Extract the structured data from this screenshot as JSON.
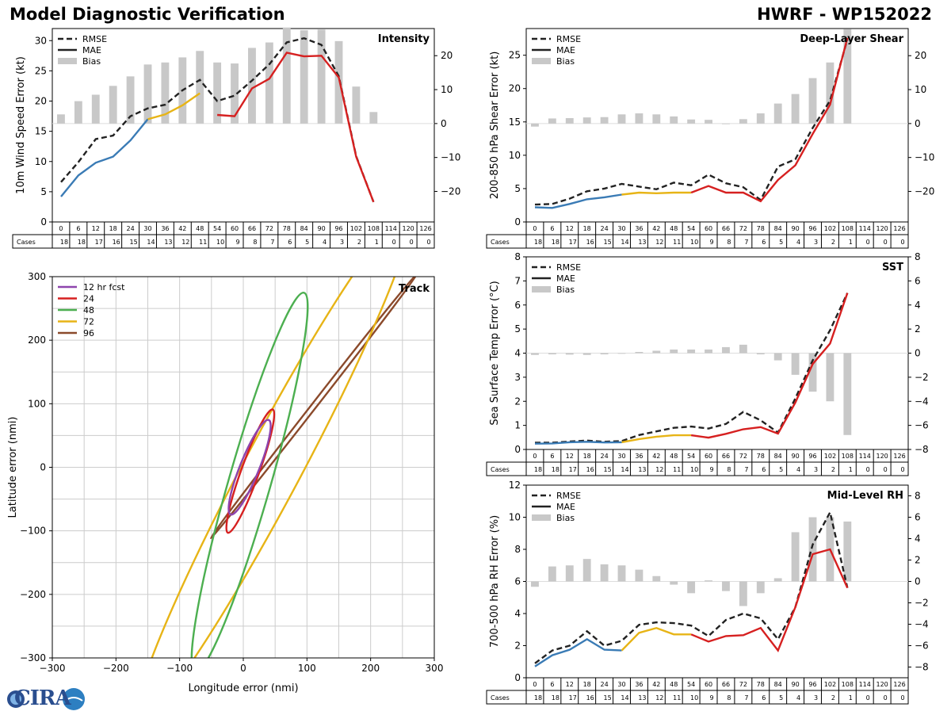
{
  "header": {
    "title": "Model Diagnostic Verification",
    "storm": "HWRF - WP152022"
  },
  "logo": {
    "text": "CIRA"
  },
  "colors": {
    "blue": "#3a7bb5",
    "yellow": "#e7b416",
    "red": "#d62020",
    "rmse": "#222222",
    "bias": "#c8c8c8",
    "purple": "#8e44ad",
    "green": "#4caf50",
    "brown": "#8b4a2b",
    "grid": "#cccccc"
  },
  "table": {
    "cases_label": "Cases",
    "leads": [
      "0",
      "6",
      "12",
      "18",
      "24",
      "30",
      "36",
      "42",
      "48",
      "54",
      "60",
      "66",
      "72",
      "78",
      "84",
      "90",
      "96",
      "102",
      "108",
      "114",
      "120",
      "126"
    ],
    "cases": [
      "18",
      "18",
      "17",
      "16",
      "15",
      "14",
      "13",
      "12",
      "11",
      "10",
      "9",
      "8",
      "7",
      "6",
      "5",
      "4",
      "3",
      "2",
      "1",
      "0",
      "0",
      "0"
    ]
  },
  "legend_labels": {
    "rmse": "RMSE",
    "mae": "MAE",
    "bias": "Bias"
  },
  "chart_data": [
    {
      "id": "intensity",
      "type": "line",
      "title": "Intensity",
      "ylabel": "10m Wind Speed Error (kt)",
      "ylim": [
        0,
        32
      ],
      "yticks": [
        0,
        5,
        10,
        15,
        20,
        25,
        30
      ],
      "y2lim": [
        -29,
        28
      ],
      "y2ticks": [
        -20,
        -10,
        0,
        10,
        20
      ],
      "x": [
        0,
        6,
        12,
        18,
        24,
        30,
        36,
        42,
        48,
        54,
        60,
        66,
        72,
        78,
        84,
        90,
        96,
        102,
        108
      ],
      "rmse": [
        6.6,
        9.9,
        13.7,
        14.3,
        17.5,
        18.8,
        19.4,
        21.8,
        23.5,
        20.0,
        20.9,
        23.4,
        26.1,
        29.7,
        30.4,
        29.3,
        24.1,
        10.9,
        3.3
      ],
      "mae": [
        4.2,
        7.7,
        9.8,
        10.8,
        13.5,
        17.0,
        17.8,
        19.3,
        21.3,
        17.7,
        17.5,
        22.1,
        23.7,
        28.0,
        27.4,
        27.5,
        23.9,
        10.8,
        3.3
      ],
      "bias": [
        2.7,
        6.6,
        8.5,
        11.1,
        13.9,
        17.4,
        18.0,
        19.5,
        21.4,
        18.0,
        17.7,
        22.3,
        23.9,
        28.3,
        27.5,
        27.7,
        24.3,
        10.9,
        3.4
      ],
      "color_segments": [
        [
          0,
          30,
          "blue"
        ],
        [
          30,
          48,
          "yellow"
        ],
        [
          54,
          108,
          "red"
        ]
      ],
      "gap": 51
    },
    {
      "id": "shear",
      "type": "line",
      "title": "Deep-Layer Shear",
      "ylabel": "200-850 hPa Shear Error (kt)",
      "ylim": [
        0,
        29
      ],
      "yticks": [
        0,
        5,
        10,
        15,
        20,
        25
      ],
      "y2lim": [
        -29,
        28
      ],
      "y2ticks": [
        -20,
        -10,
        0,
        10,
        20
      ],
      "x": [
        0,
        6,
        12,
        18,
        24,
        30,
        36,
        42,
        48,
        54,
        60,
        66,
        72,
        78,
        84,
        90,
        96,
        102,
        108
      ],
      "rmse": [
        2.6,
        2.7,
        3.5,
        4.6,
        5.0,
        5.7,
        5.3,
        4.9,
        5.9,
        5.5,
        7.1,
        5.8,
        5.2,
        3.3,
        8.3,
        9.4,
        14.1,
        18.2,
        27.4
      ],
      "mae": [
        2.2,
        2.1,
        2.7,
        3.4,
        3.7,
        4.1,
        4.4,
        4.3,
        4.4,
        4.4,
        5.4,
        4.4,
        4.4,
        3.1,
        6.3,
        8.5,
        13.2,
        17.6,
        27.6
      ],
      "bias": [
        -0.9,
        1.5,
        1.6,
        1.8,
        1.9,
        2.7,
        3.0,
        2.7,
        2.1,
        1.2,
        1.1,
        -0.1,
        1.3,
        3.0,
        5.9,
        8.7,
        13.4,
        18.0,
        27.8
      ],
      "color_segments": [
        [
          0,
          30,
          "blue"
        ],
        [
          30,
          54,
          "yellow"
        ],
        [
          54,
          108,
          "red"
        ]
      ],
      "gap": null
    },
    {
      "id": "sst",
      "type": "line",
      "title": "SST",
      "ylabel": "Sea Surface Temp Error (°C)",
      "ylim": [
        0,
        8
      ],
      "yticks": [
        0,
        1,
        2,
        3,
        4,
        5,
        6,
        7,
        8
      ],
      "y2lim": [
        -8,
        8
      ],
      "y2ticks": [
        -8,
        -6,
        -4,
        -2,
        0,
        2,
        4,
        6,
        8
      ],
      "x": [
        0,
        6,
        12,
        18,
        24,
        30,
        36,
        42,
        48,
        54,
        60,
        66,
        72,
        78,
        84,
        90,
        96,
        102,
        108
      ],
      "rmse": [
        0.28,
        0.28,
        0.33,
        0.37,
        0.32,
        0.35,
        0.6,
        0.75,
        0.9,
        0.95,
        0.87,
        1.06,
        1.56,
        1.21,
        0.7,
        2.12,
        3.7,
        4.95,
        6.5
      ],
      "mae": [
        0.24,
        0.25,
        0.3,
        0.32,
        0.29,
        0.3,
        0.43,
        0.53,
        0.59,
        0.59,
        0.49,
        0.65,
        0.84,
        0.93,
        0.66,
        1.95,
        3.55,
        4.4,
        6.5
      ],
      "bias": [
        -0.15,
        -0.1,
        -0.12,
        -0.15,
        -0.1,
        -0.05,
        0.1,
        0.2,
        0.3,
        0.3,
        0.3,
        0.5,
        0.7,
        -0.1,
        -0.6,
        -1.8,
        -3.2,
        -4.0,
        -6.8
      ],
      "color_segments": [
        [
          0,
          30,
          "blue"
        ],
        [
          30,
          54,
          "yellow"
        ],
        [
          54,
          108,
          "red"
        ]
      ],
      "gap": null
    },
    {
      "id": "rh",
      "type": "line",
      "title": "Mid-Level RH",
      "ylabel": "700-500 hPa RH Error (%)",
      "ylim": [
        0,
        12
      ],
      "yticks": [
        0,
        2,
        4,
        6,
        8,
        10,
        12
      ],
      "y2lim": [
        -9,
        9
      ],
      "y2ticks": [
        -8,
        -6,
        -4,
        -2,
        0,
        2,
        4,
        6,
        8
      ],
      "x": [
        0,
        6,
        12,
        18,
        24,
        30,
        36,
        42,
        48,
        54,
        60,
        66,
        72,
        78,
        84,
        90,
        96,
        102,
        108
      ],
      "rmse": [
        0.9,
        1.7,
        2.0,
        2.9,
        2.0,
        2.3,
        3.3,
        3.45,
        3.4,
        3.25,
        2.6,
        3.6,
        4.0,
        3.7,
        2.4,
        4.4,
        8.3,
        10.3,
        5.6
      ],
      "mae": [
        0.7,
        1.4,
        1.75,
        2.4,
        1.75,
        1.7,
        2.8,
        3.1,
        2.7,
        2.7,
        2.25,
        2.6,
        2.65,
        3.1,
        1.7,
        4.4,
        7.7,
        8.0,
        5.6
      ],
      "bias": [
        -0.5,
        1.4,
        1.5,
        2.1,
        1.6,
        1.5,
        1.1,
        0.5,
        -0.3,
        -1.1,
        0.1,
        -0.9,
        -2.3,
        -1.1,
        0.3,
        4.6,
        6.0,
        6.0,
        5.6
      ],
      "color_segments": [
        [
          0,
          30,
          "blue"
        ],
        [
          30,
          54,
          "yellow"
        ],
        [
          54,
          108,
          "red"
        ]
      ],
      "gap": null
    },
    {
      "id": "track",
      "type": "scatter",
      "title": "Track",
      "xlabel": "Longitude error (nmi)",
      "ylabel": "Latitude error (nmi)",
      "xlim": [
        -300,
        300
      ],
      "ylim": [
        -300,
        300
      ],
      "xticks": [
        -300,
        -200,
        -100,
        0,
        100,
        200,
        300
      ],
      "yticks": [
        -300,
        -200,
        -100,
        0,
        100,
        200,
        300
      ],
      "ellipses": [
        {
          "label": "12 hr fcst",
          "color": "purple",
          "cx": 10,
          "cy": 0,
          "a": 80,
          "b": 15,
          "angle": 68
        },
        {
          "label": "24",
          "color": "red",
          "cx": 11,
          "cy": -6,
          "a": 103,
          "b": 14,
          "angle": 70
        },
        {
          "label": "48",
          "color": "green",
          "cx": 10,
          "cy": -24,
          "a": 310,
          "b": 33,
          "angle": 74
        },
        {
          "label": "72",
          "color": "yellow",
          "cx": 47,
          "cy": 0,
          "a": 450,
          "b": 45,
          "angle": 62
        },
        {
          "label": "96",
          "color": "brown",
          "cx": 112,
          "cy": 98,
          "a": 265,
          "b": 4,
          "angle": 52
        }
      ]
    }
  ]
}
